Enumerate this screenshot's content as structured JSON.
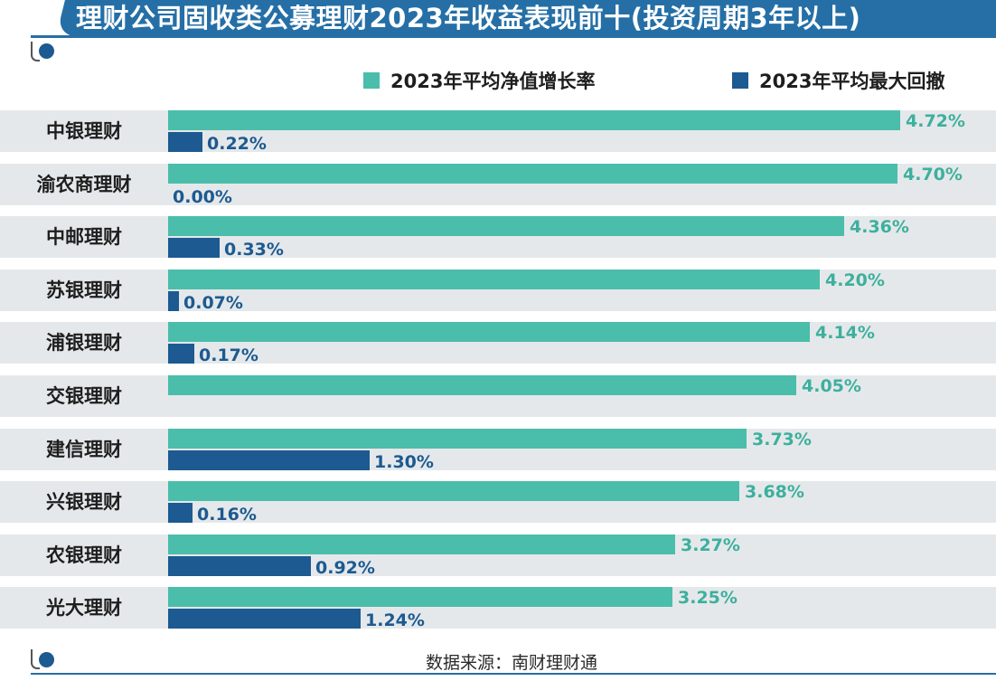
{
  "header": {
    "title": "理财公司固收类公募理财2023年收益表现前十(投资周期3年以上)"
  },
  "footer": {
    "source": "数据来源：南财理财通"
  },
  "colors": {
    "growth": "#4bbdab",
    "drawdown": "#1c5a91",
    "title_bg": "#256fa6",
    "row_band": "#e5e8ea"
  },
  "chart_data": {
    "type": "bar",
    "orientation": "horizontal",
    "title": "理财公司固收类公募理财2023年收益表现前十(投资周期3年以上)",
    "xlabel": "",
    "ylabel": "",
    "legend_position": "top-right",
    "grid": false,
    "categories": [
      "中银理财",
      "渝农商理财",
      "中邮理财",
      "苏银理财",
      "浦银理财",
      "交银理财",
      "建信理财",
      "兴银理财",
      "农银理财",
      "光大理财"
    ],
    "series": [
      {
        "name": "2023年平均净值增长率",
        "values": [
          4.72,
          4.7,
          4.36,
          4.2,
          4.14,
          4.05,
          3.73,
          3.68,
          3.27,
          3.25
        ],
        "labels": [
          "4.72%",
          "4.70%",
          "4.36%",
          "4.20%",
          "4.14%",
          "4.05%",
          "3.73%",
          "3.68%",
          "3.27%",
          "3.25%"
        ]
      },
      {
        "name": "2023年平均最大回撤",
        "values": [
          0.22,
          0.0,
          0.33,
          0.07,
          0.17,
          null,
          1.3,
          0.16,
          0.92,
          1.24
        ],
        "labels": [
          "0.22%",
          "0.00%",
          "0.33%",
          "0.07%",
          "0.17%",
          "",
          "1.30%",
          "0.16%",
          "0.92%",
          "1.24%"
        ]
      }
    ]
  }
}
